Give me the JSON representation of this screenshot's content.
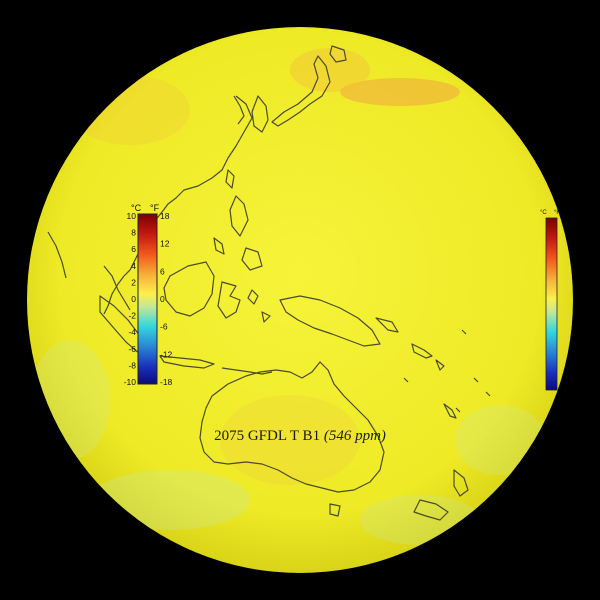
{
  "caption": {
    "year_model": "2075 GFDL T B1",
    "concentration": "(546 ppm)"
  },
  "colorbar": {
    "unit_c": "°C",
    "unit_f": "°F",
    "celsius_ticks": [
      "10",
      "8",
      "6",
      "4",
      "2",
      "0",
      "-2",
      "-4",
      "-6",
      "-8",
      "-10"
    ],
    "fahrenheit_ticks": [
      "18",
      "12",
      "6",
      "0",
      "-6",
      "-12",
      "-18"
    ],
    "color_stops": [
      "#7a0000",
      "#c41a12",
      "#f25a1c",
      "#f6b23a",
      "#fdf04a",
      "#bfe79a",
      "#35d7dc",
      "#2a86d4",
      "#1a2fbd",
      "#0b0a7a"
    ]
  },
  "colors": {
    "background": "#000000",
    "anomaly_base": "#f2ee2a",
    "warm_patch": "#f0a640",
    "cool_patch": "#c9e896",
    "coastline": "#4a4a2c"
  }
}
